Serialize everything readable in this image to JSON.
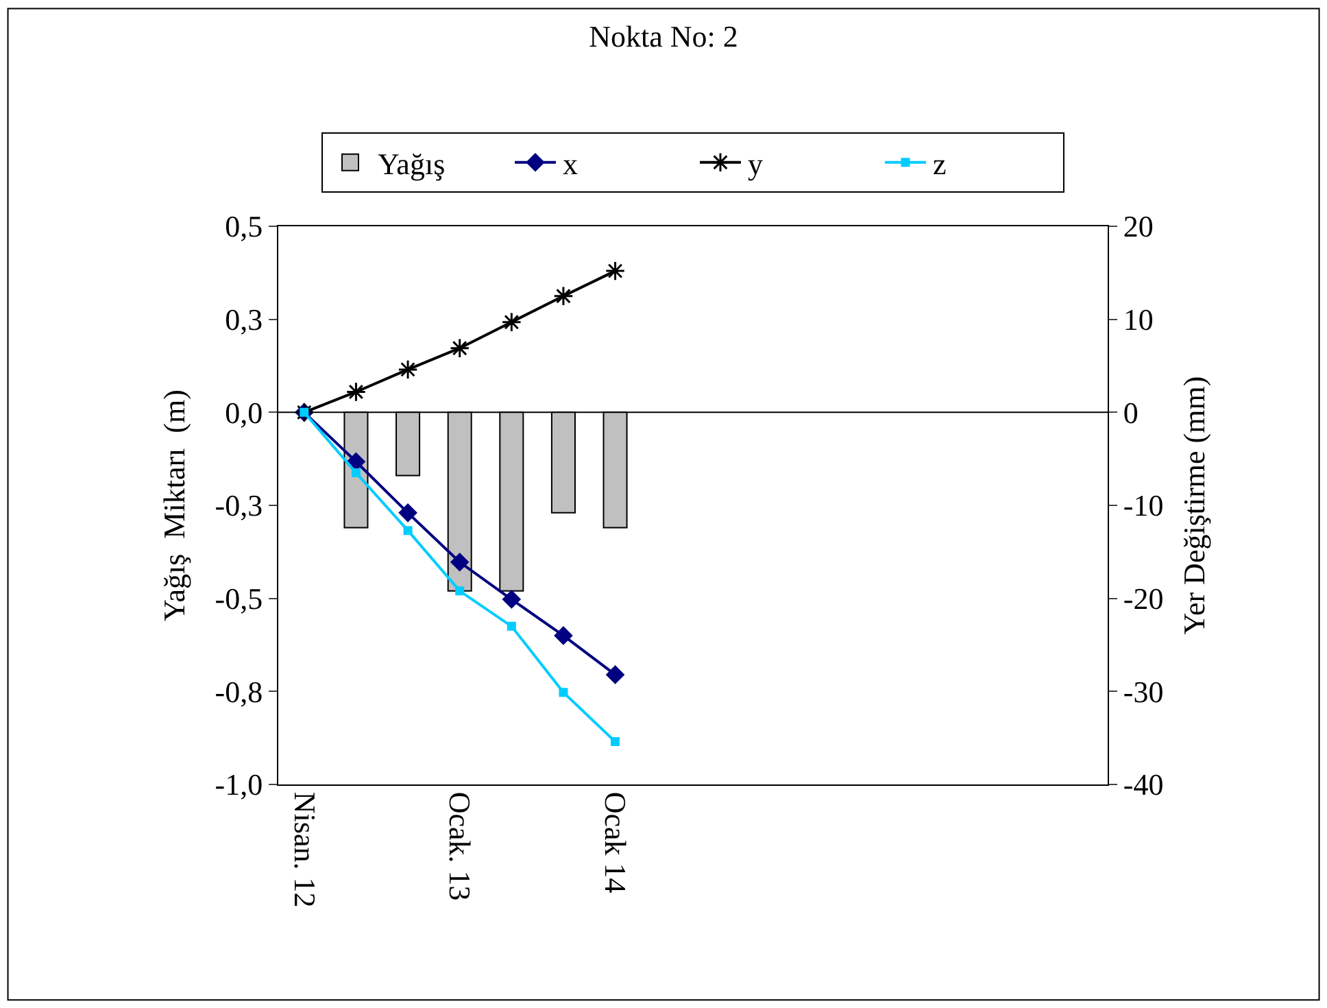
{
  "chart_data": {
    "type": "bar",
    "title": "Nokta No: 2",
    "ylabel": "Yağış  Miktarı  (m)",
    "y2label": "Yer Değiştirme (mm)",
    "categories": [
      "Nisan. 12",
      null,
      null,
      "Ocak. 13",
      null,
      null,
      "Ocak 14",
      null,
      null,
      null,
      null,
      null,
      null,
      null,
      null,
      null
    ],
    "series": [
      {
        "name": "Yağış",
        "color": "#c0c0c0",
        "values": [
          null,
          -0.31,
          -0.17,
          -0.48,
          -0.48,
          -0.27,
          -0.31,
          null,
          null,
          null,
          null,
          null,
          null,
          null,
          null,
          null
        ]
      },
      {
        "name": "x",
        "type": "line",
        "axis": "y2",
        "color": "#000080",
        "marker": "diamond",
        "values": [
          0,
          -5.3,
          -10.8,
          -16.1,
          -20.1,
          -24,
          -28.2,
          null,
          null,
          null,
          null,
          null,
          null,
          null,
          null,
          null
        ]
      },
      {
        "name": "y",
        "type": "line",
        "axis": "y2",
        "color": "#000000",
        "marker": "cross",
        "values": [
          0,
          2.2,
          4.6,
          6.9,
          9.7,
          12.5,
          15.2,
          null,
          null,
          null,
          null,
          null,
          null,
          null,
          null,
          null
        ]
      },
      {
        "name": "z",
        "type": "line",
        "axis": "y2",
        "color": "#00ccff",
        "marker": "square",
        "values": [
          0,
          -6.5,
          -12.7,
          -19.2,
          -23,
          -30.1,
          -35.4,
          null,
          null,
          null,
          null,
          null,
          null,
          null,
          null,
          null
        ]
      }
    ],
    "ylim": [
      -1,
      0.5
    ],
    "yticks": [
      {
        "value": -1,
        "label": "-1,0"
      },
      {
        "value": -0.75,
        "label": "-0,8"
      },
      {
        "value": -0.5,
        "label": "-0,5"
      },
      {
        "value": -0.25,
        "label": "-0,3"
      },
      {
        "value": 0,
        "label": "0,0"
      },
      {
        "value": 0.25,
        "label": "0,3"
      },
      {
        "value": 0.5,
        "label": "0,5"
      }
    ],
    "y2lim": [
      -40,
      20
    ],
    "y2ticks": [
      -40,
      -30,
      -20,
      -10,
      0,
      10,
      20
    ],
    "ref_lines": [
      {
        "axis": "y",
        "value": 0,
        "color": "#000000"
      }
    ],
    "legend": "top",
    "grid": false
  }
}
